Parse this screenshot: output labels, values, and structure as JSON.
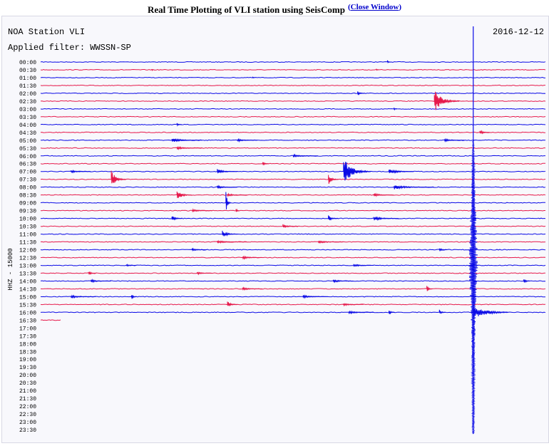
{
  "header": {
    "title": "Real Time Plotting of VLI station using SeisComp",
    "open_paren": "(",
    "close_link_label": "Close Window",
    "close_paren": ")"
  },
  "chart_data": {
    "type": "line",
    "station_label": "NOA Station VLI",
    "filter_label": "Applied filter: WWSSN-SP",
    "date": "2016-12-12",
    "channel_label": "HHZ - 15000",
    "tick_labels": [
      "00:00",
      "00:30",
      "01:00",
      "01:30",
      "02:00",
      "02:30",
      "03:00",
      "03:30",
      "04:00",
      "04:30",
      "05:00",
      "05:30",
      "06:00",
      "06:30",
      "07:00",
      "07:30",
      "08:00",
      "08:30",
      "09:00",
      "09:30",
      "10:00",
      "10:30",
      "11:00",
      "11:30",
      "12:00",
      "12:30",
      "13:00",
      "13:30",
      "14:00",
      "14:30",
      "15:00",
      "15:30",
      "16:00",
      "16:30",
      "17:00",
      "17:30",
      "18:00",
      "18:30",
      "19:00",
      "19:30",
      "20:00",
      "20:30",
      "21:00",
      "21:30",
      "22:00",
      "22:30",
      "23:00",
      "23:30"
    ],
    "trace_colors": [
      "#0a0ae6",
      "#e6194b"
    ],
    "recorded_until_row": 33,
    "last_row_fraction": 0.04,
    "event_marker_fraction": 0.857,
    "events": [
      {
        "row": 0,
        "pos": 0.687,
        "amp": 3,
        "len": 0.006
      },
      {
        "row": 1,
        "pos": 0.22,
        "amp": 2,
        "len": 0.005
      },
      {
        "row": 1,
        "pos": 0.665,
        "amp": 2,
        "len": 0.005
      },
      {
        "row": 2,
        "pos": 0.42,
        "amp": 2,
        "len": 0.004
      },
      {
        "row": 4,
        "pos": 0.628,
        "amp": 3,
        "len": 0.015
      },
      {
        "row": 5,
        "pos": 0.78,
        "amp": 16,
        "len": 0.05
      },
      {
        "row": 6,
        "pos": 0.7,
        "amp": 2,
        "len": 0.006
      },
      {
        "row": 8,
        "pos": 0.27,
        "amp": 2,
        "len": 0.01
      },
      {
        "row": 9,
        "pos": 0.87,
        "amp": 4,
        "len": 0.02
      },
      {
        "row": 10,
        "pos": 0.26,
        "amp": 3,
        "len": 0.06
      },
      {
        "row": 10,
        "pos": 0.39,
        "amp": 2,
        "len": 0.04
      },
      {
        "row": 10,
        "pos": 0.8,
        "amp": 2,
        "len": 0.04
      },
      {
        "row": 11,
        "pos": 0.27,
        "amp": 2,
        "len": 0.05
      },
      {
        "row": 12,
        "pos": 0.5,
        "amp": 2,
        "len": 0.05
      },
      {
        "row": 13,
        "pos": 0.44,
        "amp": 4,
        "len": 0.012
      },
      {
        "row": 14,
        "pos": 0.6,
        "amp": 20,
        "len": 0.055
      },
      {
        "row": 14,
        "pos": 0.35,
        "amp": 4,
        "len": 0.04
      },
      {
        "row": 14,
        "pos": 0.69,
        "amp": 4,
        "len": 0.05
      },
      {
        "row": 14,
        "pos": 0.06,
        "amp": 2,
        "len": 0.04
      },
      {
        "row": 15,
        "pos": 0.14,
        "amp": 14,
        "len": 0.03
      },
      {
        "row": 15,
        "pos": 0.57,
        "amp": 8,
        "len": 0.02
      },
      {
        "row": 16,
        "pos": 0.7,
        "amp": 3,
        "len": 0.08
      },
      {
        "row": 16,
        "pos": 0.35,
        "amp": 2,
        "len": 0.04
      },
      {
        "row": 17,
        "pos": 0.27,
        "amp": 8,
        "len": 0.03
      },
      {
        "row": 17,
        "pos": 0.66,
        "amp": 3,
        "len": 0.04
      },
      {
        "row": 17,
        "pos": 0.37,
        "amp": 2,
        "len": 0.04
      },
      {
        "row": 18,
        "pos": 0.367,
        "amp": 16,
        "len": 0.01
      },
      {
        "row": 19,
        "pos": 0.387,
        "amp": 5,
        "len": 0.006
      },
      {
        "row": 19,
        "pos": 0.3,
        "amp": 2,
        "len": 0.04
      },
      {
        "row": 20,
        "pos": 0.26,
        "amp": 5,
        "len": 0.02
      },
      {
        "row": 20,
        "pos": 0.57,
        "amp": 5,
        "len": 0.02
      },
      {
        "row": 20,
        "pos": 0.66,
        "amp": 3,
        "len": 0.05
      },
      {
        "row": 21,
        "pos": 0.48,
        "amp": 3,
        "len": 0.03
      },
      {
        "row": 22,
        "pos": 0.36,
        "amp": 5,
        "len": 0.03
      },
      {
        "row": 23,
        "pos": 0.35,
        "amp": 2,
        "len": 0.06
      },
      {
        "row": 23,
        "pos": 0.55,
        "amp": 2,
        "len": 0.05
      },
      {
        "row": 24,
        "pos": 0.3,
        "amp": 2,
        "len": 0.03
      },
      {
        "row": 24,
        "pos": 0.79,
        "amp": 3,
        "len": 0.015
      },
      {
        "row": 25,
        "pos": 0.4,
        "amp": 2,
        "len": 0.04
      },
      {
        "row": 26,
        "pos": 0.17,
        "amp": 2,
        "len": 0.02
      },
      {
        "row": 26,
        "pos": 0.62,
        "amp": 2,
        "len": 0.04
      },
      {
        "row": 27,
        "pos": 0.095,
        "amp": 4,
        "len": 0.015
      },
      {
        "row": 27,
        "pos": 0.31,
        "amp": 2,
        "len": 0.03
      },
      {
        "row": 28,
        "pos": 0.957,
        "amp": 5,
        "len": 0.012
      },
      {
        "row": 28,
        "pos": 0.1,
        "amp": 2,
        "len": 0.04
      },
      {
        "row": 28,
        "pos": 0.58,
        "amp": 2,
        "len": 0.04
      },
      {
        "row": 29,
        "pos": 0.765,
        "amp": 6,
        "len": 0.012
      },
      {
        "row": 29,
        "pos": 0.4,
        "amp": 2,
        "len": 0.04
      },
      {
        "row": 30,
        "pos": 0.18,
        "amp": 5,
        "len": 0.01
      },
      {
        "row": 30,
        "pos": 0.06,
        "amp": 2,
        "len": 0.05
      },
      {
        "row": 30,
        "pos": 0.52,
        "amp": 2,
        "len": 0.05
      },
      {
        "row": 31,
        "pos": 0.37,
        "amp": 5,
        "len": 0.02
      },
      {
        "row": 31,
        "pos": 0.6,
        "amp": 2,
        "len": 0.04
      },
      {
        "row": 32,
        "pos": 0.69,
        "amp": 4,
        "len": 0.012
      },
      {
        "row": 32,
        "pos": 0.79,
        "amp": 4,
        "len": 0.012
      },
      {
        "row": 32,
        "pos": 0.61,
        "amp": 2,
        "len": 0.05
      }
    ],
    "main_event": {
      "pos": 0.857,
      "start_row": 10,
      "peak_row": 26,
      "end_row": 47,
      "peak_amp": 7,
      "coda_row": 32,
      "coda_len": 0.07,
      "coda_amp": 9
    }
  }
}
